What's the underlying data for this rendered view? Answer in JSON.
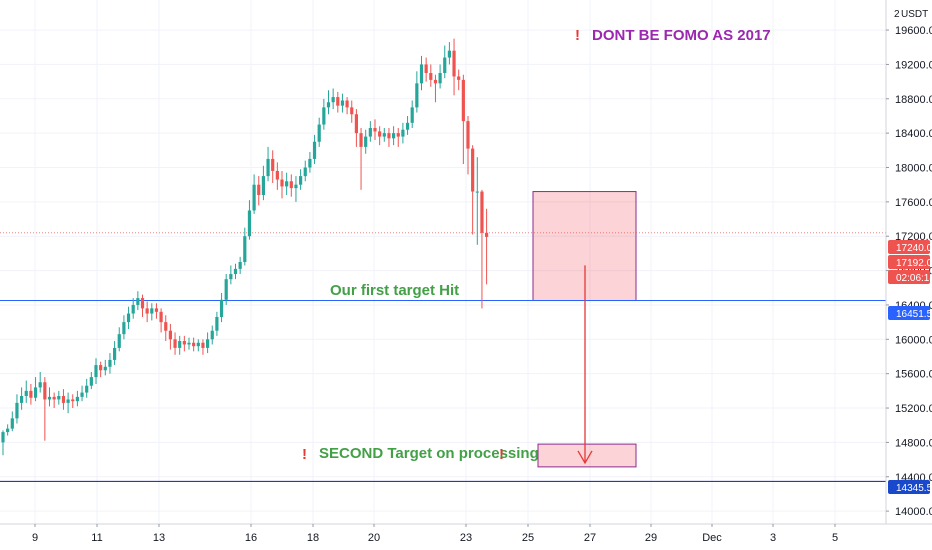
{
  "chart_data": {
    "type": "candlestick",
    "currency_label": "USDT",
    "axis_menu_label": "2",
    "ylim": [
      13850,
      19950
    ],
    "y_ticks": [
      14000,
      14400,
      14800,
      15200,
      15600,
      16000,
      16400,
      16800,
      17200,
      17600,
      18000,
      18400,
      18800,
      19200,
      19600
    ],
    "y_tick_labels": [
      "14000.0",
      "14400.0",
      "14800.0",
      "15200.0",
      "15600.0",
      "16000.0",
      "16400.0",
      "16800.0",
      "17200.0",
      "17600.0",
      "18000.0",
      "18400.0",
      "18800.0",
      "19200.0",
      "19600.0"
    ],
    "x_ticks": [
      "9",
      "11",
      "13",
      "16",
      "18",
      "20",
      "23",
      "25",
      "27",
      "29",
      "Dec",
      "3",
      "5"
    ],
    "price_badges": [
      {
        "label": "17240.0",
        "value": 17240,
        "color": "#ef5350"
      },
      {
        "label": "17192.0",
        "value": 17192,
        "color": "#ef5350"
      },
      {
        "label": "02:06:18",
        "value": 17110,
        "color": "#ef5350"
      },
      {
        "label": "16451.5",
        "value": 16451.5,
        "color": "#2962ff"
      },
      {
        "label": "14345.5",
        "value": 14345.5,
        "color": "#1848cc"
      }
    ],
    "levels": [
      {
        "name": "first-target",
        "value": 16451.5,
        "color": "#2962ff"
      },
      {
        "name": "second-target",
        "value": 14345.5,
        "color": "#1515c0"
      }
    ],
    "annotations": {
      "fomo": "DONT BE FOMO AS 2017",
      "first_target": "Our first target Hit",
      "second_target": "SECOND Target on processing",
      "exclaim": "!"
    },
    "candles": [
      [
        14800,
        14920,
        14650,
        14940
      ],
      [
        14920,
        14960,
        14880,
        15010
      ],
      [
        14960,
        15080,
        14930,
        15160
      ],
      [
        15080,
        15260,
        15020,
        15360
      ],
      [
        15260,
        15340,
        15180,
        15440
      ],
      [
        15340,
        15400,
        15260,
        15520
      ],
      [
        15400,
        15320,
        15240,
        15480
      ],
      [
        15320,
        15440,
        15280,
        15560
      ],
      [
        15440,
        15500,
        15380,
        15620
      ],
      [
        15500,
        15300,
        14820,
        15560
      ],
      [
        15300,
        15330,
        15220,
        15440
      ],
      [
        15330,
        15300,
        15200,
        15380
      ],
      [
        15300,
        15340,
        15240,
        15400
      ],
      [
        15340,
        15260,
        15180,
        15420
      ],
      [
        15260,
        15300,
        15140,
        15380
      ],
      [
        15300,
        15280,
        15200,
        15360
      ],
      [
        15280,
        15330,
        15220,
        15400
      ],
      [
        15330,
        15380,
        15280,
        15460
      ],
      [
        15380,
        15460,
        15320,
        15540
      ],
      [
        15460,
        15560,
        15420,
        15620
      ],
      [
        15560,
        15700,
        15480,
        15780
      ],
      [
        15700,
        15640,
        15560,
        15740
      ],
      [
        15640,
        15680,
        15580,
        15760
      ],
      [
        15680,
        15760,
        15600,
        15840
      ],
      [
        15760,
        15900,
        15700,
        15980
      ],
      [
        15900,
        16060,
        15860,
        16140
      ],
      [
        16060,
        16200,
        16000,
        16280
      ],
      [
        16200,
        16300,
        16120,
        16380
      ],
      [
        16300,
        16400,
        16240,
        16480
      ],
      [
        16400,
        16480,
        16340,
        16560
      ],
      [
        16480,
        16360,
        16260,
        16520
      ],
      [
        16360,
        16300,
        16200,
        16440
      ],
      [
        16300,
        16360,
        16220,
        16420
      ],
      [
        16360,
        16320,
        16240,
        16420
      ],
      [
        16320,
        16200,
        16080,
        16360
      ],
      [
        16200,
        16100,
        15980,
        16280
      ],
      [
        16100,
        16000,
        15880,
        16180
      ],
      [
        16000,
        15900,
        15820,
        16080
      ],
      [
        15900,
        15980,
        15820,
        16040
      ],
      [
        15980,
        15940,
        15860,
        16040
      ],
      [
        15940,
        15960,
        15880,
        16020
      ],
      [
        15960,
        15920,
        15860,
        16020
      ],
      [
        15920,
        15960,
        15860,
        16000
      ],
      [
        15960,
        15900,
        15820,
        16000
      ],
      [
        15900,
        16000,
        15840,
        16080
      ],
      [
        16000,
        16100,
        15940,
        16160
      ],
      [
        16100,
        16260,
        16040,
        16320
      ],
      [
        16260,
        16460,
        16200,
        16540
      ],
      [
        16460,
        16700,
        16400,
        16760
      ],
      [
        16700,
        16760,
        16640,
        16860
      ],
      [
        16760,
        16820,
        16700,
        16880
      ],
      [
        16820,
        16900,
        16760,
        16960
      ],
      [
        16900,
        17200,
        16860,
        17300
      ],
      [
        17200,
        17500,
        17160,
        17620
      ],
      [
        17500,
        17800,
        17460,
        17920
      ],
      [
        17800,
        17680,
        17560,
        17900
      ],
      [
        17680,
        17900,
        17620,
        18020
      ],
      [
        17900,
        18100,
        17840,
        18240
      ],
      [
        18100,
        17960,
        17820,
        18200
      ],
      [
        17960,
        17860,
        17740,
        18060
      ],
      [
        17860,
        17780,
        17640,
        17960
      ],
      [
        17780,
        17840,
        17680,
        17940
      ],
      [
        17840,
        17760,
        17660,
        17920
      ],
      [
        17760,
        17800,
        17600,
        17900
      ],
      [
        17800,
        17900,
        17740,
        17980
      ],
      [
        17900,
        18000,
        17840,
        18080
      ],
      [
        18000,
        18100,
        17940,
        18180
      ],
      [
        18100,
        18300,
        18040,
        18380
      ],
      [
        18300,
        18500,
        18240,
        18580
      ],
      [
        18500,
        18700,
        18440,
        18800
      ],
      [
        18700,
        18760,
        18620,
        18900
      ],
      [
        18760,
        18820,
        18680,
        18920
      ],
      [
        18820,
        18720,
        18640,
        18880
      ],
      [
        18720,
        18780,
        18640,
        18860
      ],
      [
        18780,
        18700,
        18620,
        18820
      ],
      [
        18700,
        18620,
        18520,
        18780
      ],
      [
        18620,
        18400,
        18240,
        18680
      ],
      [
        18400,
        18240,
        17740,
        18460
      ],
      [
        18240,
        18360,
        18160,
        18440
      ],
      [
        18360,
        18460,
        18300,
        18540
      ],
      [
        18460,
        18420,
        18320,
        18560
      ],
      [
        18420,
        18360,
        18260,
        18480
      ],
      [
        18360,
        18400,
        18300,
        18460
      ],
      [
        18400,
        18340,
        18240,
        18460
      ],
      [
        18340,
        18400,
        18260,
        18480
      ],
      [
        18400,
        18360,
        18240,
        18460
      ],
      [
        18360,
        18440,
        18280,
        18520
      ],
      [
        18440,
        18520,
        18380,
        18600
      ],
      [
        18520,
        18700,
        18460,
        18780
      ],
      [
        18700,
        18980,
        18640,
        19120
      ],
      [
        18980,
        19200,
        18900,
        19300
      ],
      [
        19200,
        19100,
        19000,
        19280
      ],
      [
        19100,
        19020,
        18940,
        19200
      ],
      [
        19020,
        18980,
        18760,
        19080
      ],
      [
        18980,
        19100,
        18920,
        19200
      ],
      [
        19100,
        19280,
        19040,
        19420
      ],
      [
        19280,
        19360,
        19200,
        19460
      ],
      [
        19360,
        19060,
        18840,
        19500
      ],
      [
        19060,
        19020,
        18900,
        19140
      ],
      [
        19020,
        18540,
        18040,
        19080
      ],
      [
        18540,
        18220,
        17920,
        18600
      ],
      [
        18220,
        17720,
        17220,
        18260
      ],
      [
        17720,
        17720,
        17100,
        18120
      ],
      [
        17720,
        17240,
        16360,
        17740
      ],
      [
        17240,
        17192,
        16640,
        17520
      ]
    ]
  }
}
